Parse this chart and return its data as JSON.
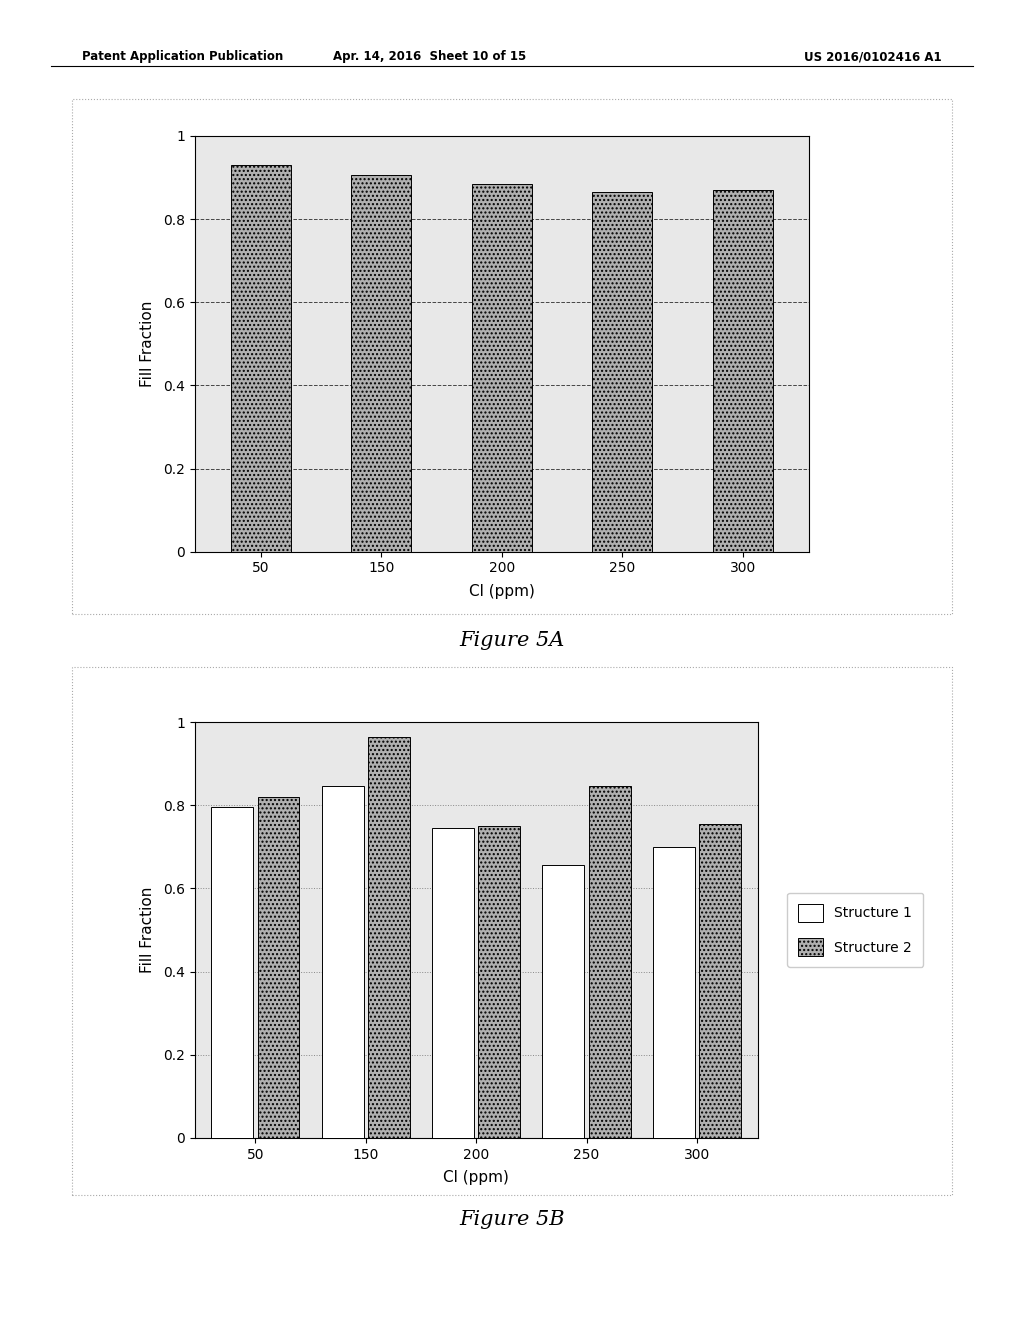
{
  "fig5a": {
    "categories": [
      50,
      150,
      200,
      250,
      300
    ],
    "values": [
      0.93,
      0.905,
      0.885,
      0.865,
      0.87
    ],
    "bar_color": "#b0b0b0",
    "bar_hatch": "....",
    "xlabel": "Cl (ppm)",
    "ylabel": "Fill Fraction",
    "ylim": [
      0,
      1
    ],
    "yticks": [
      0,
      0.2,
      0.4,
      0.6,
      0.8,
      1
    ],
    "ytick_labels": [
      "0",
      "0.2",
      "0.4",
      "0.6",
      "0.8",
      "1"
    ],
    "grid_color": "#444444",
    "grid_style": "--",
    "title": "Figure 5A"
  },
  "fig5b": {
    "categories": [
      50,
      150,
      200,
      250,
      300
    ],
    "struct1_values": [
      0.795,
      0.845,
      0.745,
      0.655,
      0.7
    ],
    "struct2_values": [
      0.82,
      0.965,
      0.75,
      0.845,
      0.755
    ],
    "bar_color_s1": "#ffffff",
    "bar_color_s2": "#b0b0b0",
    "bar_hatch_s2": "....",
    "xlabel": "Cl (ppm)",
    "ylabel": "Fill Fraction",
    "ylim": [
      0,
      1
    ],
    "yticks": [
      0,
      0.2,
      0.4,
      0.6,
      0.8,
      1
    ],
    "ytick_labels": [
      "0",
      "0.2",
      "0.4",
      "0.6",
      "0.8",
      "1"
    ],
    "grid_color": "#888888",
    "grid_style": ":",
    "title": "Figure 5B",
    "legend_labels": [
      "Structure 1",
      "Structure 2"
    ]
  },
  "header_left": "Patent Application Publication",
  "header_mid": "Apr. 14, 2016  Sheet 10 of 15",
  "header_right": "US 2016/0102416 A1",
  "bg_color": "#e8e8e8",
  "page_bg": "#ffffff",
  "outer_border_color": "#aaaaaa"
}
